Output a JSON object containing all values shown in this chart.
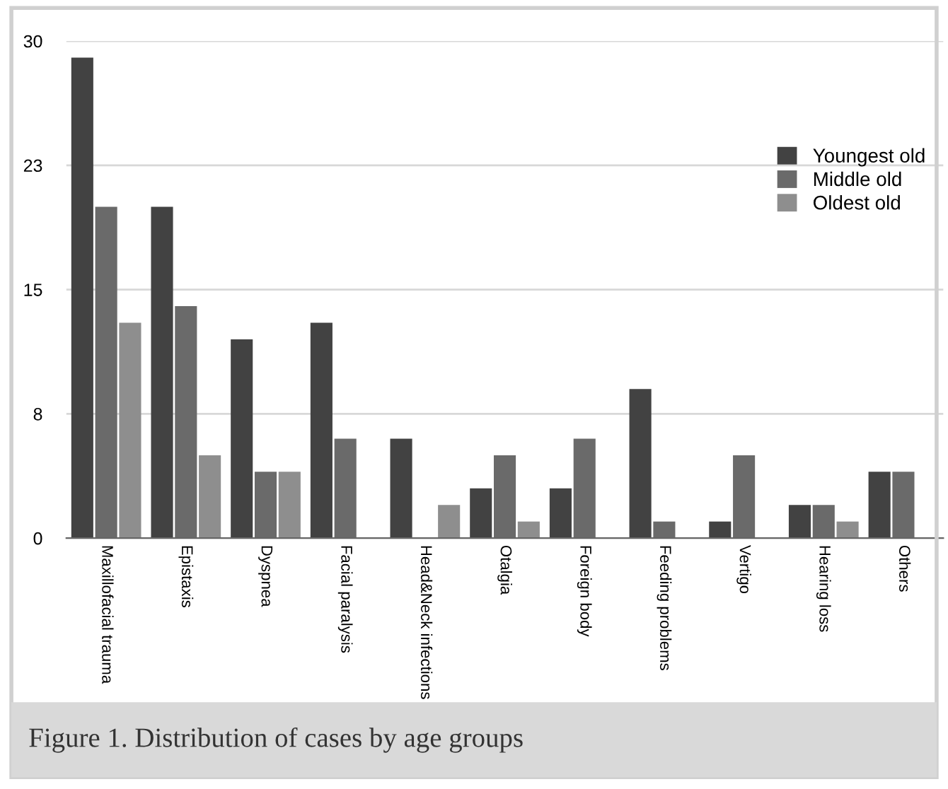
{
  "chart_data": {
    "type": "bar",
    "categories": [
      "Maxillofacial trauma",
      "Epistaxis",
      "Dyspnea",
      "Facial paralysis",
      "Head&Neck infections",
      "Otalgia",
      "Foreign body",
      "Feeding problems",
      "Vertigo",
      "Hearing loss",
      "Others"
    ],
    "series": [
      {
        "name": "Youngest old",
        "color": "#424242",
        "values": [
          29,
          20,
          12,
          13,
          6,
          3,
          3,
          9,
          1,
          2,
          4
        ]
      },
      {
        "name": "Middle old",
        "color": "#6a6a6a",
        "values": [
          20,
          14,
          4,
          6,
          0,
          5,
          6,
          1,
          5,
          2,
          4
        ]
      },
      {
        "name": "Oldest old",
        "color": "#8e8e8e",
        "values": [
          13,
          5,
          4,
          0,
          2,
          1,
          0,
          0,
          0,
          1,
          0
        ]
      }
    ],
    "ylim": [
      0,
      30
    ],
    "yticks": [
      0,
      {
        "value": 7.5,
        "label": "8"
      },
      15,
      {
        "value": 22.5,
        "label": "23"
      },
      30
    ],
    "grid": "y",
    "legend": "right",
    "annotations": [
      "Figure 1. Distribution of cases by age groups"
    ]
  }
}
